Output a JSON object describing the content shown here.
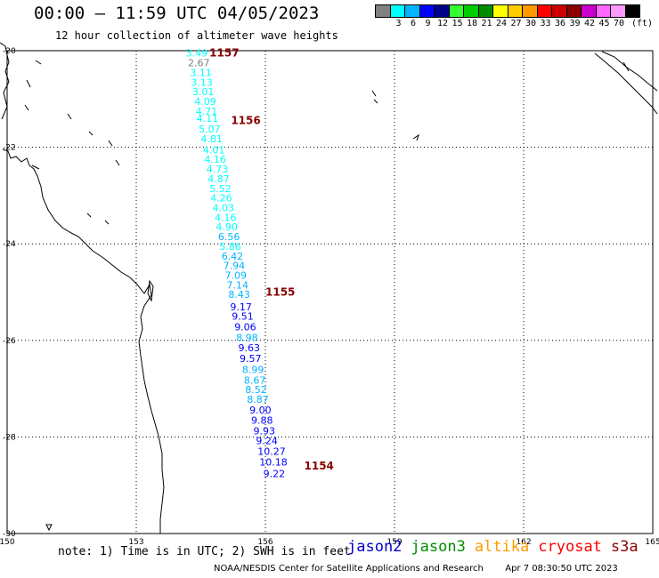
{
  "header": {
    "title": "00:00 – 11:59 UTC 04/05/2023",
    "subtitle": "12 hour collection of altimeter wave heights"
  },
  "colorbar": {
    "unit_label": "(ft)",
    "bins": [
      {
        "color": "#808080",
        "label": ""
      },
      {
        "color": "#00ffff",
        "label": "3"
      },
      {
        "color": "#00b4ff",
        "label": "6"
      },
      {
        "color": "#0000ff",
        "label": "9"
      },
      {
        "color": "#00008c",
        "label": "12"
      },
      {
        "color": "#33ff33",
        "label": "15"
      },
      {
        "color": "#00cc00",
        "label": "18"
      },
      {
        "color": "#008c00",
        "label": "21"
      },
      {
        "color": "#ffff00",
        "label": "24"
      },
      {
        "color": "#ffcc00",
        "label": "27"
      },
      {
        "color": "#ff9900",
        "label": "30"
      },
      {
        "color": "#ff0000",
        "label": "33"
      },
      {
        "color": "#cc0000",
        "label": "36"
      },
      {
        "color": "#8c0000",
        "label": "39"
      },
      {
        "color": "#cc00cc",
        "label": "42"
      },
      {
        "color": "#ff66ff",
        "label": "45"
      },
      {
        "color": "#ff99ff",
        "label": "70"
      },
      {
        "color": "#000000",
        "label": ""
      }
    ]
  },
  "map": {
    "lat_labels": [
      "-20",
      "-22",
      "-24",
      "-26",
      "-28",
      "-30"
    ],
    "lon_labels": [
      "150",
      "153",
      "156",
      "159",
      "162",
      "165"
    ],
    "lat_range": [
      -30,
      -20
    ],
    "lon_range": [
      150,
      165
    ],
    "grid": "dotted",
    "pass_color": "#8b0000",
    "passes": [
      {
        "id": "1157",
        "lat": -20.05,
        "lon": 154.7
      },
      {
        "id": "1156",
        "lat": -21.45,
        "lon": 155.2
      },
      {
        "id": "1155",
        "lat": -25.0,
        "lon": 156.0
      },
      {
        "id": "1154",
        "lat": -28.6,
        "lon": 156.9
      }
    ],
    "observations": [
      {
        "value": "3.49",
        "lat": -20.05,
        "lon": 154.15,
        "color": "#00ffff"
      },
      {
        "value": "2.67",
        "lat": -20.25,
        "lon": 154.2,
        "color": "#808080"
      },
      {
        "value": "3.11",
        "lat": -20.45,
        "lon": 154.25,
        "color": "#00ffff"
      },
      {
        "value": "3.13",
        "lat": -20.65,
        "lon": 154.27,
        "color": "#00ffff"
      },
      {
        "value": "3.01",
        "lat": -20.85,
        "lon": 154.3,
        "color": "#00ffff"
      },
      {
        "value": "4.09",
        "lat": -21.05,
        "lon": 154.35,
        "color": "#00ffff"
      },
      {
        "value": "4.71",
        "lat": -21.25,
        "lon": 154.38,
        "color": "#00ffff"
      },
      {
        "value": "4.11",
        "lat": -21.4,
        "lon": 154.4,
        "color": "#00ffff"
      },
      {
        "value": "5.07",
        "lat": -21.62,
        "lon": 154.45,
        "color": "#00ffff"
      },
      {
        "value": "4.81",
        "lat": -21.82,
        "lon": 154.5,
        "color": "#00ffff"
      },
      {
        "value": "4.01",
        "lat": -22.05,
        "lon": 154.55,
        "color": "#00ffff"
      },
      {
        "value": "4.16",
        "lat": -22.25,
        "lon": 154.58,
        "color": "#00ffff"
      },
      {
        "value": "4.73",
        "lat": -22.45,
        "lon": 154.63,
        "color": "#00ffff"
      },
      {
        "value": "4.87",
        "lat": -22.65,
        "lon": 154.66,
        "color": "#00ffff"
      },
      {
        "value": "5.52",
        "lat": -22.85,
        "lon": 154.7,
        "color": "#00ffff"
      },
      {
        "value": "4.26",
        "lat": -23.05,
        "lon": 154.72,
        "color": "#00ffff"
      },
      {
        "value": "4.03",
        "lat": -23.25,
        "lon": 154.77,
        "color": "#00ffff"
      },
      {
        "value": "4.16",
        "lat": -23.45,
        "lon": 154.82,
        "color": "#00ffff"
      },
      {
        "value": "4.90",
        "lat": -23.65,
        "lon": 154.85,
        "color": "#00ffff"
      },
      {
        "value": "6.56",
        "lat": -23.85,
        "lon": 154.9,
        "color": "#00b4ff"
      },
      {
        "value": "5.86",
        "lat": -24.05,
        "lon": 154.93,
        "color": "#00ffff"
      },
      {
        "value": "6.42",
        "lat": -24.25,
        "lon": 154.98,
        "color": "#00b4ff"
      },
      {
        "value": "7.94",
        "lat": -24.45,
        "lon": 155.02,
        "color": "#00b4ff"
      },
      {
        "value": "7.09",
        "lat": -24.65,
        "lon": 155.06,
        "color": "#00b4ff"
      },
      {
        "value": "7.14",
        "lat": -24.85,
        "lon": 155.1,
        "color": "#00b4ff"
      },
      {
        "value": "8.43",
        "lat": -25.05,
        "lon": 155.14,
        "color": "#00b4ff"
      },
      {
        "value": "9.17",
        "lat": -25.3,
        "lon": 155.18,
        "color": "#0000ff"
      },
      {
        "value": "9.51",
        "lat": -25.5,
        "lon": 155.22,
        "color": "#0000ff"
      },
      {
        "value": "9.06",
        "lat": -25.72,
        "lon": 155.28,
        "color": "#0000ff"
      },
      {
        "value": "8.98",
        "lat": -25.94,
        "lon": 155.32,
        "color": "#00b4ff"
      },
      {
        "value": "9.63",
        "lat": -26.15,
        "lon": 155.37,
        "color": "#0000ff"
      },
      {
        "value": "9.57",
        "lat": -26.37,
        "lon": 155.4,
        "color": "#0000ff"
      },
      {
        "value": "8.99",
        "lat": -26.6,
        "lon": 155.46,
        "color": "#00b4ff"
      },
      {
        "value": "8.67",
        "lat": -26.82,
        "lon": 155.5,
        "color": "#00b4ff"
      },
      {
        "value": "8.52",
        "lat": -27.02,
        "lon": 155.53,
        "color": "#00b4ff"
      },
      {
        "value": "8.87",
        "lat": -27.22,
        "lon": 155.57,
        "color": "#00b4ff"
      },
      {
        "value": "9.00",
        "lat": -27.44,
        "lon": 155.63,
        "color": "#0000ff"
      },
      {
        "value": "9.88",
        "lat": -27.65,
        "lon": 155.67,
        "color": "#0000ff"
      },
      {
        "value": "9.93",
        "lat": -27.87,
        "lon": 155.72,
        "color": "#0000ff"
      },
      {
        "value": "9.24",
        "lat": -28.08,
        "lon": 155.78,
        "color": "#0000ff"
      },
      {
        "value": "10.27",
        "lat": -28.3,
        "lon": 155.82,
        "color": "#0000ff"
      },
      {
        "value": "10.18",
        "lat": -28.52,
        "lon": 155.86,
        "color": "#0000ff"
      },
      {
        "value": "9.22",
        "lat": -28.76,
        "lon": 155.95,
        "color": "#0000ff"
      }
    ]
  },
  "footer": {
    "note": "note: 1) Time is in UTC; 2) SWH is in feet",
    "satellites": [
      {
        "name": "jason2",
        "color": "#0000cc"
      },
      {
        "name": "jason3",
        "color": "#008c00"
      },
      {
        "name": "altika",
        "color": "#ff9900"
      },
      {
        "name": "cryosat",
        "color": "#ff0000"
      },
      {
        "name": "s3a",
        "color": "#8b0000"
      }
    ],
    "credit": "NOAA/NESDIS Center for Satellite Applications and Research",
    "timestamp": "Apr  7 08:30:50 UTC 2023"
  }
}
